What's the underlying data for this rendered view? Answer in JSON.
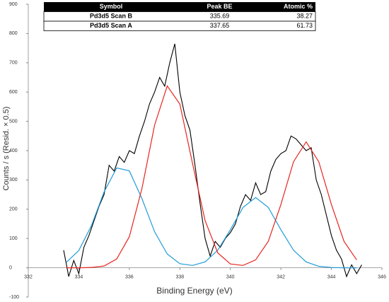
{
  "chart_data": {
    "type": "line",
    "xlabel": "Binding Energy (eV)",
    "ylabel": "Counts / s  (Resid. × 0.5)",
    "xlim": [
      332,
      346
    ],
    "xticks": [
      332,
      334,
      336,
      338,
      340,
      342,
      344,
      346
    ],
    "ylim": [
      -100,
      900
    ],
    "yticks": [
      -100,
      0,
      100,
      200,
      300,
      400,
      500,
      600,
      700,
      800,
      900
    ],
    "table": {
      "columns": [
        "Symbol",
        "Peak BE",
        "Atomic %"
      ],
      "rows": [
        [
          "Pd3d5 Scan B",
          335.69,
          38.27
        ],
        [
          "Pd3d5 Scan A",
          337.65,
          61.73
        ]
      ]
    },
    "series": [
      {
        "color": "#000000",
        "x": [
          333.4,
          333.6,
          333.8,
          334.0,
          334.2,
          334.4,
          334.6,
          334.8,
          335.0,
          335.2,
          335.4,
          335.6,
          335.8,
          336.0,
          336.2,
          336.4,
          336.6,
          336.8,
          337.0,
          337.2,
          337.4,
          337.6,
          337.8,
          338.0,
          338.2,
          338.4,
          338.6,
          338.8,
          339.0,
          339.2,
          339.4,
          339.6,
          339.8,
          340.0,
          340.2,
          340.4,
          340.6,
          340.8,
          341.0,
          341.2,
          341.4,
          341.6,
          341.8,
          342.0,
          342.2,
          342.4,
          342.6,
          342.8,
          343.0,
          343.2,
          343.4,
          343.6,
          343.8,
          344.0,
          344.2,
          344.4,
          344.6,
          344.8,
          345.0,
          345.2
        ],
        "values": [
          60,
          -30,
          25,
          -20,
          70,
          110,
          160,
          210,
          250,
          350,
          330,
          380,
          360,
          400,
          390,
          450,
          500,
          560,
          600,
          650,
          620,
          700,
          765,
          600,
          520,
          470,
          350,
          220,
          100,
          40,
          90,
          70,
          100,
          120,
          150,
          210,
          250,
          230,
          290,
          250,
          260,
          330,
          370,
          390,
          400,
          450,
          440,
          420,
          400,
          410,
          300,
          250,
          180,
          110,
          60,
          30,
          -30,
          10,
          -20,
          10
        ]
      },
      {
        "color": "#1f9bd7",
        "x": [
          333.5,
          334,
          334.5,
          335,
          335.5,
          336,
          336.5,
          337,
          337.5,
          338,
          338.5,
          339,
          339.5,
          340,
          340.5,
          341,
          341.5,
          342,
          342.5,
          343,
          343.5,
          344,
          344.5,
          345
        ],
        "values": [
          18,
          59,
          144,
          259,
          341,
          331,
          236,
          123,
          47,
          14,
          8,
          20,
          60,
          130,
          206,
          240,
          206,
          130,
          60,
          20,
          5,
          1,
          0,
          0
        ]
      },
      {
        "color": "#e8251f",
        "x": [
          333.5,
          334,
          334.5,
          335,
          335.5,
          336,
          336.5,
          337,
          337.5,
          338,
          338.5,
          339,
          339.5,
          340,
          340.5,
          341,
          341.5,
          342,
          342.5,
          343,
          343.5,
          344,
          344.5,
          345
        ],
        "values": [
          0,
          0,
          1,
          6,
          30,
          106,
          271,
          487,
          621,
          559,
          357,
          161,
          51,
          13,
          8,
          27,
          90,
          216,
          362,
          430,
          362,
          216,
          90,
          27
        ]
      }
    ]
  }
}
